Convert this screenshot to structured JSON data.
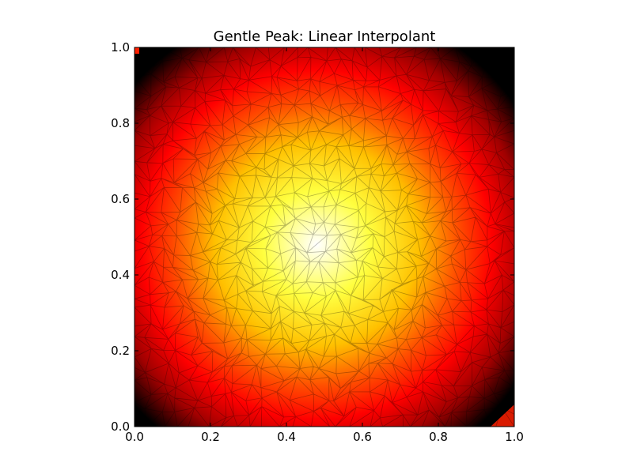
{
  "chart_data": {
    "type": "heatmap",
    "title": "Gentle Peak: Linear Interpolant",
    "xlabel": "",
    "ylabel": "",
    "xlim": [
      0.0,
      1.0
    ],
    "ylim": [
      0.0,
      1.0
    ],
    "x_ticks": [
      "0.0",
      "0.2",
      "0.4",
      "0.6",
      "0.8",
      "1.0"
    ],
    "y_ticks": [
      "0.0",
      "0.2",
      "0.4",
      "0.6",
      "0.8",
      "1.0"
    ],
    "peak_center": [
      0.48,
      0.48
    ],
    "colormap": [
      "#000000",
      "#ff0000",
      "#ffff00",
      "#ffffff"
    ],
    "overlay": "triangulation mesh",
    "grid": false,
    "legend": "none"
  }
}
